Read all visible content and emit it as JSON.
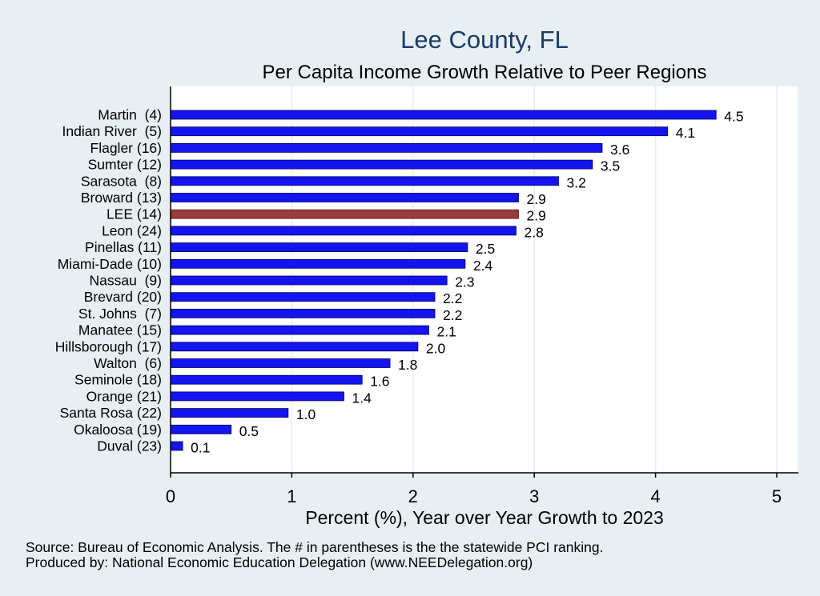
{
  "chart_data": {
    "type": "bar",
    "orientation": "horizontal",
    "title": "Lee County, FL",
    "subtitle": "Per Capita Income Growth Relative to Peer Regions",
    "xlabel": "Percent (%), Year over Year Growth to 2023",
    "ylabel": "",
    "xlim": [
      0,
      5.15
    ],
    "xticks": [
      "0",
      "1",
      "2",
      "3",
      "4",
      "5"
    ],
    "grid": true,
    "categories": [
      "Martin  (4)",
      "Indian River  (5)",
      "Flagler (16)",
      "Sumter (12)",
      "Sarasota  (8)",
      "Broward (13)",
      "LEE (14)",
      "Leon (24)",
      "Pinellas (11)",
      "Miami-Dade (10)",
      "Nassau  (9)",
      "Brevard (20)",
      "St. Johns  (7)",
      "Manatee (15)",
      "Hillsborough (17)",
      "Walton  (6)",
      "Seminole (18)",
      "Orange (21)",
      "Santa Rosa (22)",
      "Okaloosa (19)",
      "Duval (23)"
    ],
    "values": [
      4.5,
      4.1,
      3.56,
      3.48,
      3.2,
      2.87,
      2.87,
      2.85,
      2.45,
      2.43,
      2.28,
      2.18,
      2.18,
      2.13,
      2.04,
      1.81,
      1.58,
      1.43,
      0.97,
      0.5,
      0.1
    ],
    "value_labels": [
      "4.5",
      "4.1",
      "3.6",
      "3.5",
      "3.2",
      "2.9",
      "2.9",
      "2.8",
      "2.5",
      "2.4",
      "2.3",
      "2.2",
      "2.2",
      "2.1",
      "2.0",
      "1.8",
      "1.6",
      "1.4",
      "1.0",
      "0.5",
      "0.1"
    ],
    "highlight": "LEE (14)",
    "colors": {
      "bar": "#1414f0",
      "highlight": "#9a3a3e",
      "plot_bg": "#ffffff",
      "page_bg": "#e8eff2",
      "grid": "#e6eef2",
      "title": "#1a3b6b"
    }
  },
  "notes": {
    "source": "Source: Bureau of Economic Analysis. The # in parentheses is the the statewide PCI ranking.",
    "produced_by": "Produced by: National Economic Education Delegation (www.NEEDelegation.org)"
  }
}
